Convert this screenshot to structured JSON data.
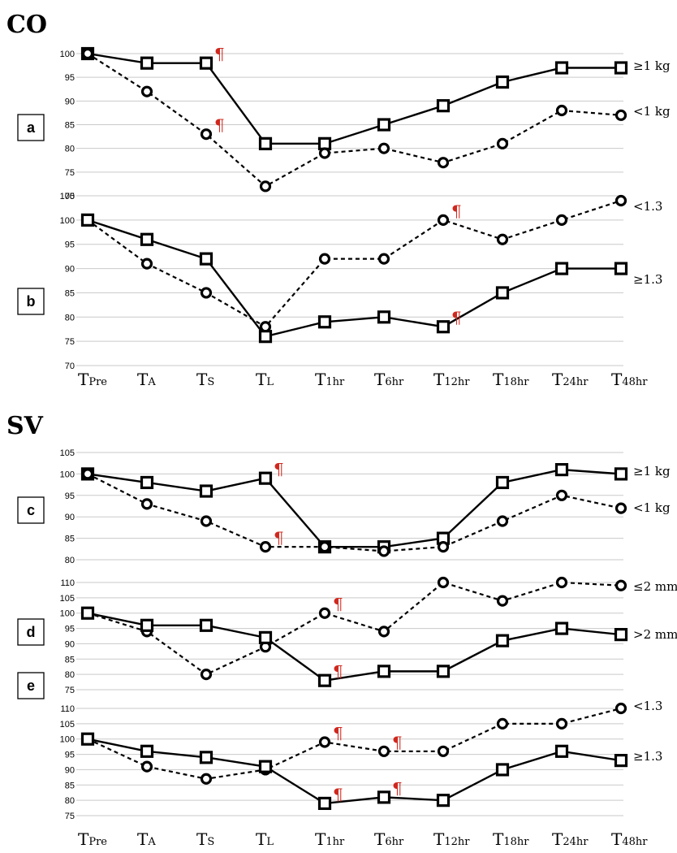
{
  "figure": {
    "co_title": "CO",
    "sv_title": "SV",
    "marker_symbol": "¶",
    "marker_color": "#d0281e",
    "line_color": "#000000"
  },
  "chart_data": [
    {
      "id": "a",
      "type": "line",
      "panel_label": "a",
      "categories": [
        {
          "main": "T",
          "sub": "Pre"
        },
        {
          "main": "T",
          "sub": "A"
        },
        {
          "main": "T",
          "sub": "S"
        },
        {
          "main": "T",
          "sub": "L"
        },
        {
          "main": "T",
          "sub": "1hr"
        },
        {
          "main": "T",
          "sub": "6hr"
        },
        {
          "main": "T",
          "sub": "12hr"
        },
        {
          "main": "T",
          "sub": "18hr"
        },
        {
          "main": "T",
          "sub": "24hr"
        },
        {
          "main": "T",
          "sub": "48hr"
        }
      ],
      "yticks": [
        70,
        75,
        80,
        85,
        90,
        95,
        100
      ],
      "ylim": [
        70,
        100
      ],
      "series": [
        {
          "name": "≥1 kg",
          "marker": "square",
          "dashed": false,
          "values": [
            100,
            98,
            98,
            81,
            81,
            85,
            89,
            94,
            97,
            97
          ],
          "significant": [
            2
          ]
        },
        {
          "name": "<1 kg",
          "marker": "circle",
          "dashed": true,
          "values": [
            100,
            92,
            83,
            72,
            79,
            80,
            77,
            81,
            88,
            87
          ],
          "significant": [
            2
          ]
        }
      ]
    },
    {
      "id": "b",
      "type": "line",
      "panel_label": "b",
      "categories": [
        {
          "main": "T",
          "sub": "Pre"
        },
        {
          "main": "T",
          "sub": "A"
        },
        {
          "main": "T",
          "sub": "S"
        },
        {
          "main": "T",
          "sub": "L"
        },
        {
          "main": "T",
          "sub": "1hr"
        },
        {
          "main": "T",
          "sub": "6hr"
        },
        {
          "main": "T",
          "sub": "12hr"
        },
        {
          "main": "T",
          "sub": "18hr"
        },
        {
          "main": "T",
          "sub": "24hr"
        },
        {
          "main": "T",
          "sub": "48hr"
        }
      ],
      "yticks": [
        70,
        75,
        80,
        85,
        90,
        95,
        100,
        105
      ],
      "ylim": [
        70,
        105
      ],
      "series": [
        {
          "name": "<1.3",
          "marker": "circle",
          "dashed": true,
          "values": [
            100,
            91,
            85,
            78,
            92,
            92,
            100,
            96,
            100,
            104
          ],
          "significant": [
            6
          ]
        },
        {
          "name": "≥1.3",
          "marker": "square",
          "dashed": false,
          "values": [
            100,
            96,
            92,
            76,
            79,
            80,
            78,
            85,
            90,
            90
          ],
          "significant": [
            6
          ]
        }
      ]
    },
    {
      "id": "c",
      "type": "line",
      "panel_label": "c",
      "categories": [
        {
          "main": "T",
          "sub": "Pre"
        },
        {
          "main": "T",
          "sub": "A"
        },
        {
          "main": "T",
          "sub": "S"
        },
        {
          "main": "T",
          "sub": "L"
        },
        {
          "main": "T",
          "sub": "1hr"
        },
        {
          "main": "T",
          "sub": "6hr"
        },
        {
          "main": "T",
          "sub": "12hr"
        },
        {
          "main": "T",
          "sub": "18hr"
        },
        {
          "main": "T",
          "sub": "24hr"
        },
        {
          "main": "T",
          "sub": "48hr"
        }
      ],
      "yticks": [
        80,
        85,
        90,
        95,
        100,
        105
      ],
      "ylim": [
        80,
        105
      ],
      "series": [
        {
          "name": "≥1 kg",
          "marker": "square",
          "dashed": false,
          "values": [
            100,
            98,
            96,
            99,
            83,
            83,
            85,
            98,
            101,
            100
          ],
          "significant": [
            3
          ]
        },
        {
          "name": "<1 kg",
          "marker": "circle",
          "dashed": true,
          "values": [
            100,
            93,
            89,
            83,
            83,
            82,
            83,
            89,
            95,
            92
          ],
          "significant": [
            3
          ]
        }
      ]
    },
    {
      "id": "d",
      "type": "line",
      "panel_label": "d",
      "categories": [
        {
          "main": "T",
          "sub": "Pre"
        },
        {
          "main": "T",
          "sub": "A"
        },
        {
          "main": "T",
          "sub": "S"
        },
        {
          "main": "T",
          "sub": "L"
        },
        {
          "main": "T",
          "sub": "1hr"
        },
        {
          "main": "T",
          "sub": "6hr"
        },
        {
          "main": "T",
          "sub": "12hr"
        },
        {
          "main": "T",
          "sub": "18hr"
        },
        {
          "main": "T",
          "sub": "24hr"
        },
        {
          "main": "T",
          "sub": "48hr"
        }
      ],
      "yticks": [
        75,
        80,
        85,
        90,
        95,
        100,
        105,
        110
      ],
      "ylim": [
        75,
        110
      ],
      "series": [
        {
          "name": "≤2 mm",
          "marker": "circle",
          "dashed": true,
          "values": [
            100,
            94,
            80,
            89,
            100,
            94,
            110,
            104,
            110,
            109
          ],
          "significant": [
            4
          ]
        },
        {
          "name": ">2 mm",
          "marker": "square",
          "dashed": false,
          "values": [
            100,
            96,
            96,
            92,
            78,
            81,
            81,
            91,
            95,
            93
          ],
          "significant": [
            4
          ]
        }
      ]
    },
    {
      "id": "e",
      "type": "line",
      "panel_label": "e",
      "categories": [
        {
          "main": "T",
          "sub": "Pre"
        },
        {
          "main": "T",
          "sub": "A"
        },
        {
          "main": "T",
          "sub": "S"
        },
        {
          "main": "T",
          "sub": "L"
        },
        {
          "main": "T",
          "sub": "1hr"
        },
        {
          "main": "T",
          "sub": "6hr"
        },
        {
          "main": "T",
          "sub": "12hr"
        },
        {
          "main": "T",
          "sub": "18hr"
        },
        {
          "main": "T",
          "sub": "24hr"
        },
        {
          "main": "T",
          "sub": "48hr"
        }
      ],
      "yticks": [
        75,
        80,
        85,
        90,
        95,
        100,
        105,
        110
      ],
      "ylim": [
        75,
        110
      ],
      "series": [
        {
          "name": "<1.3",
          "marker": "circle",
          "dashed": true,
          "values": [
            100,
            91,
            87,
            90,
            99,
            96,
            96,
            105,
            105,
            110
          ],
          "significant": [
            4,
            5
          ]
        },
        {
          "name": "≥1.3",
          "marker": "square",
          "dashed": false,
          "values": [
            100,
            96,
            94,
            91,
            79,
            81,
            80,
            90,
            96,
            93
          ],
          "significant": [
            4,
            5
          ]
        }
      ]
    }
  ]
}
